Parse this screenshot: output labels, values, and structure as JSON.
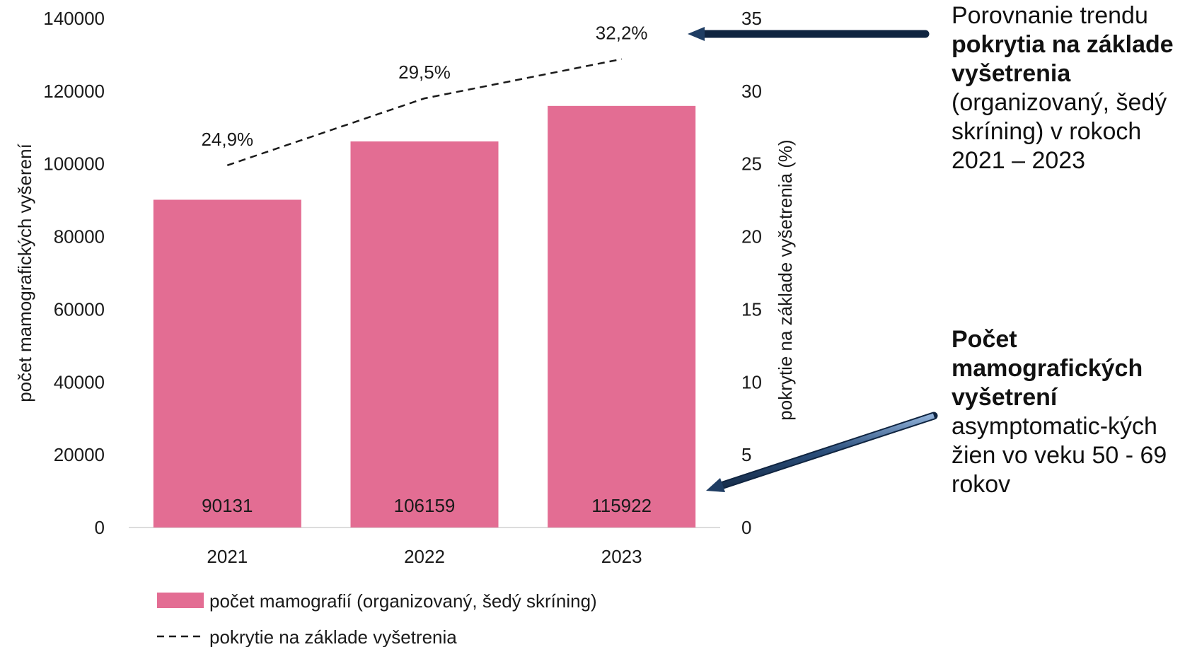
{
  "chart_data": {
    "type": "bar",
    "categories": [
      "2021",
      "2022",
      "2023"
    ],
    "series": [
      {
        "name": "počet mamografií (organizovaný, šedý skríning)",
        "type": "bar",
        "axis": "left",
        "values": [
          90131,
          106159,
          115922
        ],
        "data_labels": [
          "90131",
          "106159",
          "115922"
        ],
        "color": "#e36d93"
      },
      {
        "name": "pokrytie na základe vyšetrenia",
        "type": "line",
        "axis": "right",
        "style": "dashed",
        "values": [
          24.9,
          29.5,
          32.2
        ],
        "data_labels": [
          "24,9%",
          "29,5%",
          "32,2%"
        ],
        "color": "#1a1a1a"
      }
    ],
    "ylabel": "počet mamografických vyšerení",
    "ylim": [
      0,
      140000
    ],
    "yticks": [
      "0",
      "20000",
      "40000",
      "60000",
      "80000",
      "100000",
      "120000",
      "140000"
    ],
    "y2label": "pokrytie na základe vyšetrenia (%)",
    "y2lim": [
      0,
      35
    ],
    "y2ticks": [
      "0",
      "5",
      "10",
      "15",
      "20",
      "25",
      "30",
      "35"
    ],
    "grid": false,
    "legend": "bottom"
  },
  "annotations": {
    "coverage": {
      "normal1": "Porovnanie trendu ",
      "bold": "pokrytia na základe vyšetrenia",
      "normal2": " (organizovaný, šedý skríning) v rokoch 2021 – 2023"
    },
    "count": {
      "bold": "Počet mamografických vyšetrení",
      "normal": " asymptomatic-kých žien vo veku 50 - 69 rokov"
    }
  },
  "colors": {
    "bar": "#e36d93",
    "arrow": "#1f3d63",
    "text": "#1a1a1a"
  }
}
